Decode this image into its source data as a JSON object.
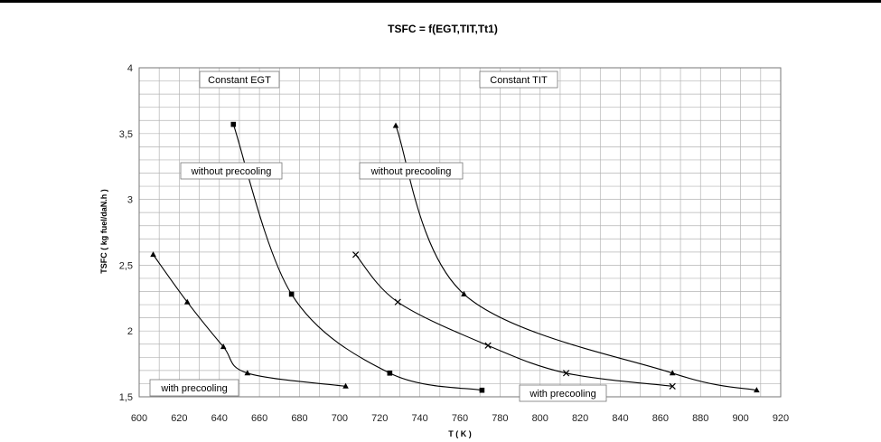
{
  "chart_data": {
    "type": "scatter",
    "title": "TSFC = f(EGT,TIT,Tt1)",
    "xlabel": "T ( K )",
    "ylabel": "TSFC ( kg fuel/daN.h )",
    "xlim": [
      600,
      920
    ],
    "ylim": [
      1.5,
      4
    ],
    "x_ticks": [
      "600",
      "620",
      "640",
      "660",
      "680",
      "700",
      "720",
      "740",
      "760",
      "780",
      "800",
      "820",
      "840",
      "860",
      "880",
      "900",
      "920"
    ],
    "y_ticks": [
      "1,5",
      "2",
      "2,5",
      "3",
      "3,5",
      "4"
    ],
    "grid": true,
    "legend": "none",
    "annotations": [
      "Constant EGT",
      "Constant TIT",
      "without precooling",
      "without precooling",
      "with precooling",
      "with precooling"
    ],
    "series": [
      {
        "marker": "triangle",
        "points": [
          [
            607,
            2.58
          ],
          [
            624,
            2.22
          ],
          [
            642,
            1.88
          ],
          [
            654,
            1.68
          ],
          [
            703,
            1.58
          ]
        ]
      },
      {
        "marker": "square",
        "points": [
          [
            647,
            3.57
          ],
          [
            676,
            2.28
          ],
          [
            725,
            1.68
          ],
          [
            771,
            1.55
          ]
        ]
      },
      {
        "marker": "cross",
        "points": [
          [
            708,
            2.58
          ],
          [
            729,
            2.22
          ],
          [
            774,
            1.89
          ],
          [
            813,
            1.68
          ],
          [
            866,
            1.58
          ]
        ]
      },
      {
        "marker": "triangle",
        "points": [
          [
            728,
            3.56
          ],
          [
            762,
            2.28
          ],
          [
            866,
            1.68
          ],
          [
            908,
            1.55
          ]
        ]
      }
    ],
    "colors": {
      "line": "#000000",
      "grid": "#b4b4b4",
      "frame": "#777777"
    }
  }
}
